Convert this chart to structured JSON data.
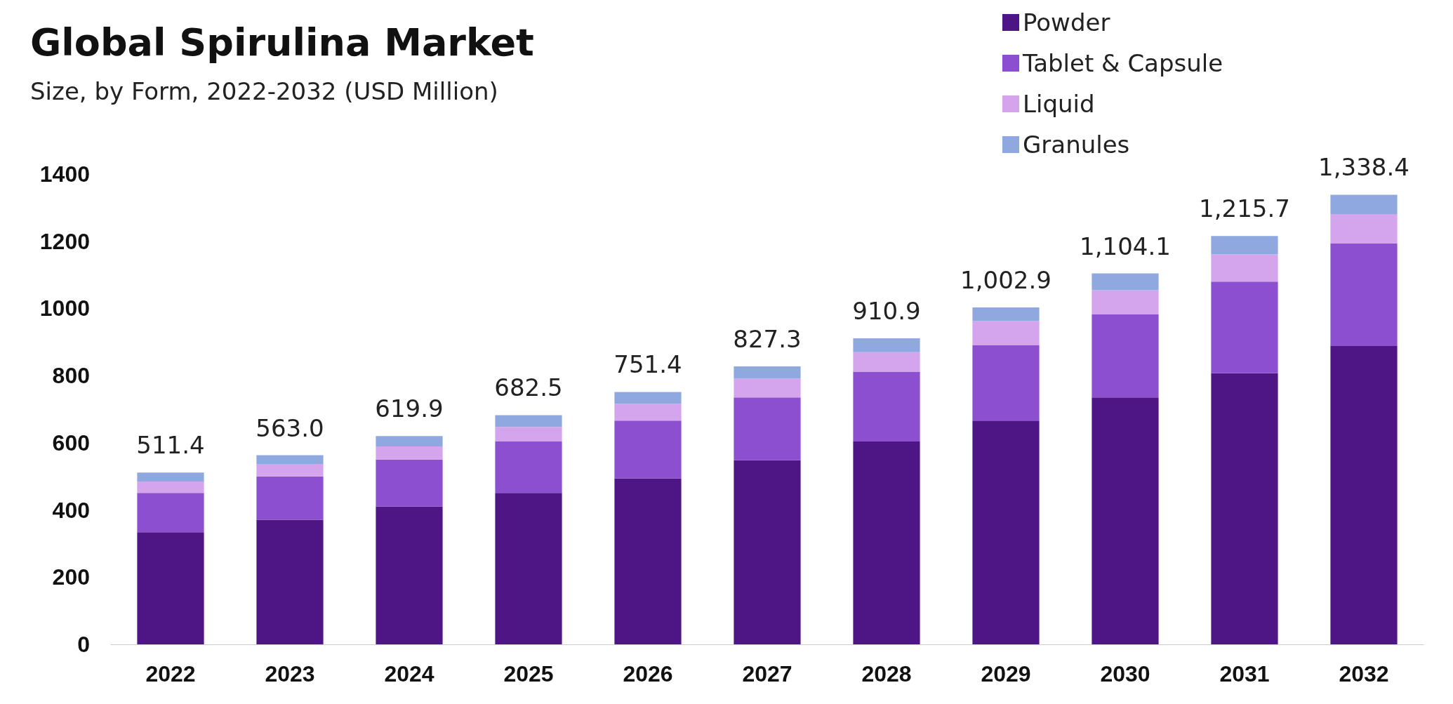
{
  "chart_data": {
    "type": "bar",
    "title": "Global Spirulina Market",
    "subtitle": "Size, by Form, 2022-2032 (USD Million)",
    "categories": [
      "2022",
      "2023",
      "2024",
      "2025",
      "2026",
      "2027",
      "2028",
      "2029",
      "2030",
      "2031",
      "2032"
    ],
    "stacked": true,
    "series": [
      {
        "name": "Powder",
        "color": "#4e1585",
        "values": [
          334,
          371,
          410,
          451,
          494,
          548,
          604,
          666,
          735,
          807,
          888
        ]
      },
      {
        "name": "Tablet & Capsule",
        "color": "#8b4fcf",
        "values": [
          117,
          129,
          140,
          153,
          172,
          187,
          208,
          225,
          247,
          273,
          305
        ]
      },
      {
        "name": "Liquid",
        "color": "#d4a5ec",
        "values": [
          34,
          37,
          39,
          43,
          50,
          56,
          58,
          72,
          72,
          81,
          88
        ]
      },
      {
        "name": "Granules",
        "color": "#8fa8e0",
        "values": [
          26.4,
          26,
          30.9,
          35.5,
          35.4,
          36.3,
          40.9,
          39.9,
          50.1,
          54.7,
          57.4
        ]
      }
    ],
    "totals": [
      "511.4",
      "563.0",
      "619.9",
      "682.5",
      "751.4",
      "827.3",
      "910.9",
      "1,002.9",
      "1,104.1",
      "1,215.7",
      "1,338.4"
    ],
    "ylim": [
      0,
      1400
    ],
    "yticks": [
      0,
      200,
      400,
      600,
      800,
      1000,
      1200,
      1400
    ],
    "grid": false,
    "legend": "top right"
  }
}
